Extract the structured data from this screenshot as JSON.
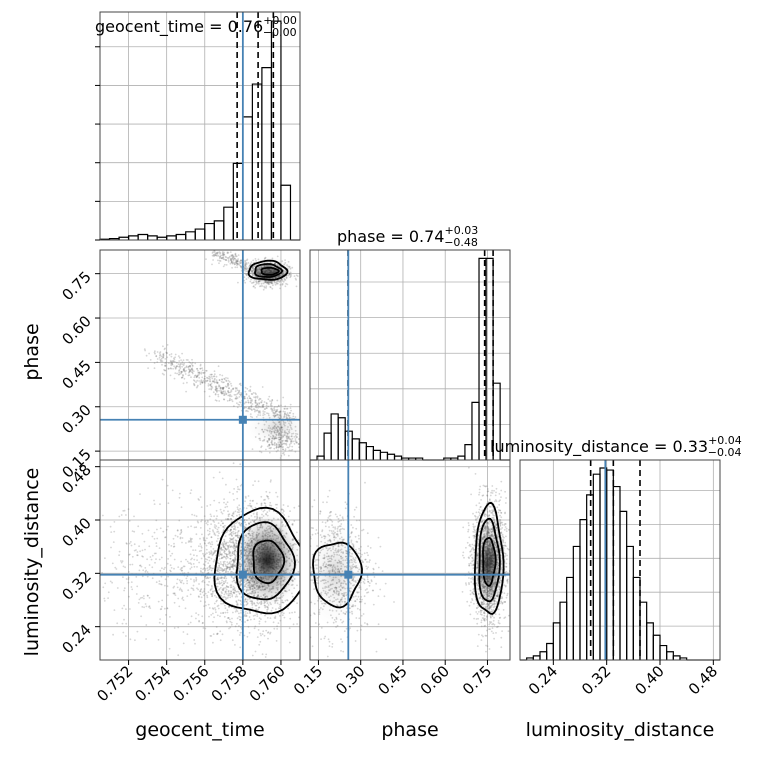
{
  "chart_data": {
    "type": "corner",
    "parameters": [
      {
        "key": "geocent_time",
        "label": "geocent_time",
        "range": [
          0.7505,
          0.761
        ],
        "ticks": [
          0.752,
          0.754,
          0.756,
          0.758,
          0.76
        ],
        "tick_labels": [
          "0.752",
          "0.754",
          "0.756",
          "0.758",
          "0.760"
        ],
        "truth": 0.758
      },
      {
        "key": "phase",
        "label": "phase",
        "range": [
          0.12,
          0.83
        ],
        "ticks": [
          0.15,
          0.3,
          0.45,
          0.6,
          0.75
        ],
        "tick_labels": [
          "0.15",
          "0.30",
          "0.45",
          "0.60",
          "0.75"
        ],
        "truth": 0.256
      },
      {
        "key": "luminosity_distance",
        "label": "luminosity_distance",
        "range": [
          0.19,
          0.49
        ],
        "ticks": [
          0.24,
          0.32,
          0.4,
          0.48
        ],
        "tick_labels": [
          "0.24",
          "0.32",
          "0.40",
          "0.48"
        ],
        "truth": 0.318
      }
    ],
    "titles": [
      {
        "name": "geocent_time",
        "median": "0.76",
        "plus": "+0.00",
        "minus": "−0.00"
      },
      {
        "name": "phase",
        "median": "0.74",
        "plus": "+0.03",
        "minus": "−0.48"
      },
      {
        "name": "luminosity_distance",
        "median": "0.33",
        "plus": "+0.04",
        "minus": "−0.04"
      }
    ],
    "quantiles": {
      "geocent_time": [
        0.7577,
        0.7588,
        0.7596
      ],
      "phase": [
        0.255,
        0.74,
        0.77
      ],
      "luminosity_distance": [
        0.296,
        0.33,
        0.37
      ]
    },
    "histograms": {
      "geocent_time": {
        "edges": [
          0.7505,
          0.751,
          0.7515,
          0.752,
          0.7525,
          0.753,
          0.7535,
          0.754,
          0.7545,
          0.755,
          0.7555,
          0.756,
          0.7565,
          0.757,
          0.7575,
          0.758,
          0.7585,
          0.759,
          0.7595,
          0.76,
          0.7605,
          0.761
        ],
        "counts": [
          0.3,
          0.5,
          1.0,
          1.5,
          2.0,
          1.5,
          1.0,
          1.5,
          2.0,
          3.0,
          4.0,
          6.0,
          7.0,
          12.0,
          28.0,
          45.0,
          57.0,
          63.0,
          80.0,
          20.0,
          0.0
        ]
      },
      "phase": {
        "edges": [
          0.12,
          0.145,
          0.17,
          0.195,
          0.22,
          0.245,
          0.27,
          0.295,
          0.32,
          0.345,
          0.37,
          0.395,
          0.42,
          0.445,
          0.47,
          0.495,
          0.52,
          0.545,
          0.57,
          0.595,
          0.62,
          0.645,
          0.67,
          0.695,
          0.72,
          0.745,
          0.77,
          0.795,
          0.83
        ],
        "counts": [
          0,
          2,
          14,
          24,
          22,
          15,
          11,
          9,
          7,
          5,
          4,
          3,
          2,
          1,
          1,
          1,
          0,
          0,
          0,
          1,
          1,
          2,
          8,
          30,
          105,
          105,
          40,
          0
        ]
      },
      "luminosity_distance": {
        "edges": [
          0.19,
          0.2,
          0.21,
          0.22,
          0.23,
          0.24,
          0.25,
          0.26,
          0.27,
          0.28,
          0.29,
          0.3,
          0.31,
          0.32,
          0.33,
          0.34,
          0.35,
          0.36,
          0.37,
          0.38,
          0.39,
          0.4,
          0.41,
          0.42,
          0.43,
          0.44,
          0.45,
          0.46,
          0.47,
          0.48,
          0.49
        ],
        "counts": [
          0,
          1,
          2,
          4,
          8,
          18,
          28,
          40,
          55,
          68,
          80,
          90,
          93,
          92,
          84,
          72,
          55,
          40,
          28,
          18,
          12,
          7,
          4,
          2,
          1,
          0,
          0,
          0,
          0,
          0
        ]
      }
    },
    "pairs": [
      {
        "x": "geocent_time",
        "y": "phase",
        "clusters": [
          {
            "type": "line",
            "x0": 0.7535,
            "y0": 0.475,
            "x1": 0.7605,
            "y1": 0.25,
            "spread_x": 0.0004,
            "spread_y": 0.018,
            "n": 700
          },
          {
            "type": "line",
            "x0": 0.7565,
            "y0": 0.82,
            "x1": 0.7595,
            "y1": 0.74,
            "spread_x": 0.0002,
            "spread_y": 0.01,
            "n": 300
          },
          {
            "type": "blob",
            "cx": 0.7594,
            "cy": 0.75,
            "sx": 0.0005,
            "sy": 0.02,
            "n": 700
          },
          {
            "type": "blob",
            "cx": 0.7599,
            "cy": 0.19,
            "sx": 0.0005,
            "sy": 0.025,
            "n": 250
          }
        ],
        "density": [
          {
            "cx": 0.7594,
            "cy": 0.755,
            "sx": 0.0004,
            "sy": 0.012,
            "w": 1.0
          },
          {
            "cx": 0.7598,
            "cy": 0.23,
            "sx": 0.0006,
            "sy": 0.02,
            "w": 0.15
          }
        ],
        "contours": [
          {
            "cx": 0.7593,
            "cy": 0.76,
            "rx": 0.001,
            "ry": 0.032
          },
          {
            "cx": 0.7593,
            "cy": 0.76,
            "rx": 0.0007,
            "ry": 0.022
          },
          {
            "cx": 0.7594,
            "cy": 0.758,
            "rx": 0.00045,
            "ry": 0.012
          }
        ]
      },
      {
        "x": "geocent_time",
        "y": "luminosity_distance",
        "clusters": [
          {
            "type": "blob",
            "cx": 0.7584,
            "cy": 0.335,
            "sx": 0.0013,
            "sy": 0.045,
            "n": 2300
          },
          {
            "type": "blob",
            "cx": 0.7545,
            "cy": 0.32,
            "sx": 0.0025,
            "sy": 0.05,
            "n": 500
          }
        ],
        "density": [
          {
            "cx": 0.7593,
            "cy": 0.34,
            "sx": 0.0006,
            "sy": 0.025,
            "w": 1.0
          }
        ],
        "contours": [
          {
            "cx": 0.7589,
            "cy": 0.335,
            "rx": 0.0024,
            "ry": 0.078
          },
          {
            "cx": 0.7591,
            "cy": 0.337,
            "rx": 0.0015,
            "ry": 0.058
          },
          {
            "cx": 0.7593,
            "cy": 0.338,
            "rx": 0.0008,
            "ry": 0.032
          }
        ]
      },
      {
        "x": "phase",
        "y": "luminosity_distance",
        "clusters": [
          {
            "type": "blob",
            "cx": 0.755,
            "cy": 0.335,
            "sx": 0.03,
            "sy": 0.045,
            "n": 1800
          },
          {
            "type": "blob",
            "cx": 0.22,
            "cy": 0.325,
            "sx": 0.06,
            "sy": 0.048,
            "n": 800
          }
        ],
        "density": [
          {
            "cx": 0.755,
            "cy": 0.335,
            "sx": 0.018,
            "sy": 0.025,
            "w": 1.0
          },
          {
            "cx": 0.21,
            "cy": 0.32,
            "sx": 0.04,
            "sy": 0.03,
            "w": 0.12
          }
        ],
        "contours": [
          {
            "cx": 0.755,
            "cy": 0.338,
            "rx": 0.05,
            "ry": 0.082
          },
          {
            "cx": 0.755,
            "cy": 0.338,
            "rx": 0.036,
            "ry": 0.062
          },
          {
            "cx": 0.755,
            "cy": 0.338,
            "rx": 0.022,
            "ry": 0.036
          },
          {
            "cx": 0.215,
            "cy": 0.32,
            "rx": 0.085,
            "ry": 0.048
          }
        ]
      }
    ],
    "colors": {
      "truth": "#4682b4",
      "hist": "#000000",
      "quantile": "#000000",
      "scatter": "#6b6b6b"
    },
    "grid": true
  }
}
